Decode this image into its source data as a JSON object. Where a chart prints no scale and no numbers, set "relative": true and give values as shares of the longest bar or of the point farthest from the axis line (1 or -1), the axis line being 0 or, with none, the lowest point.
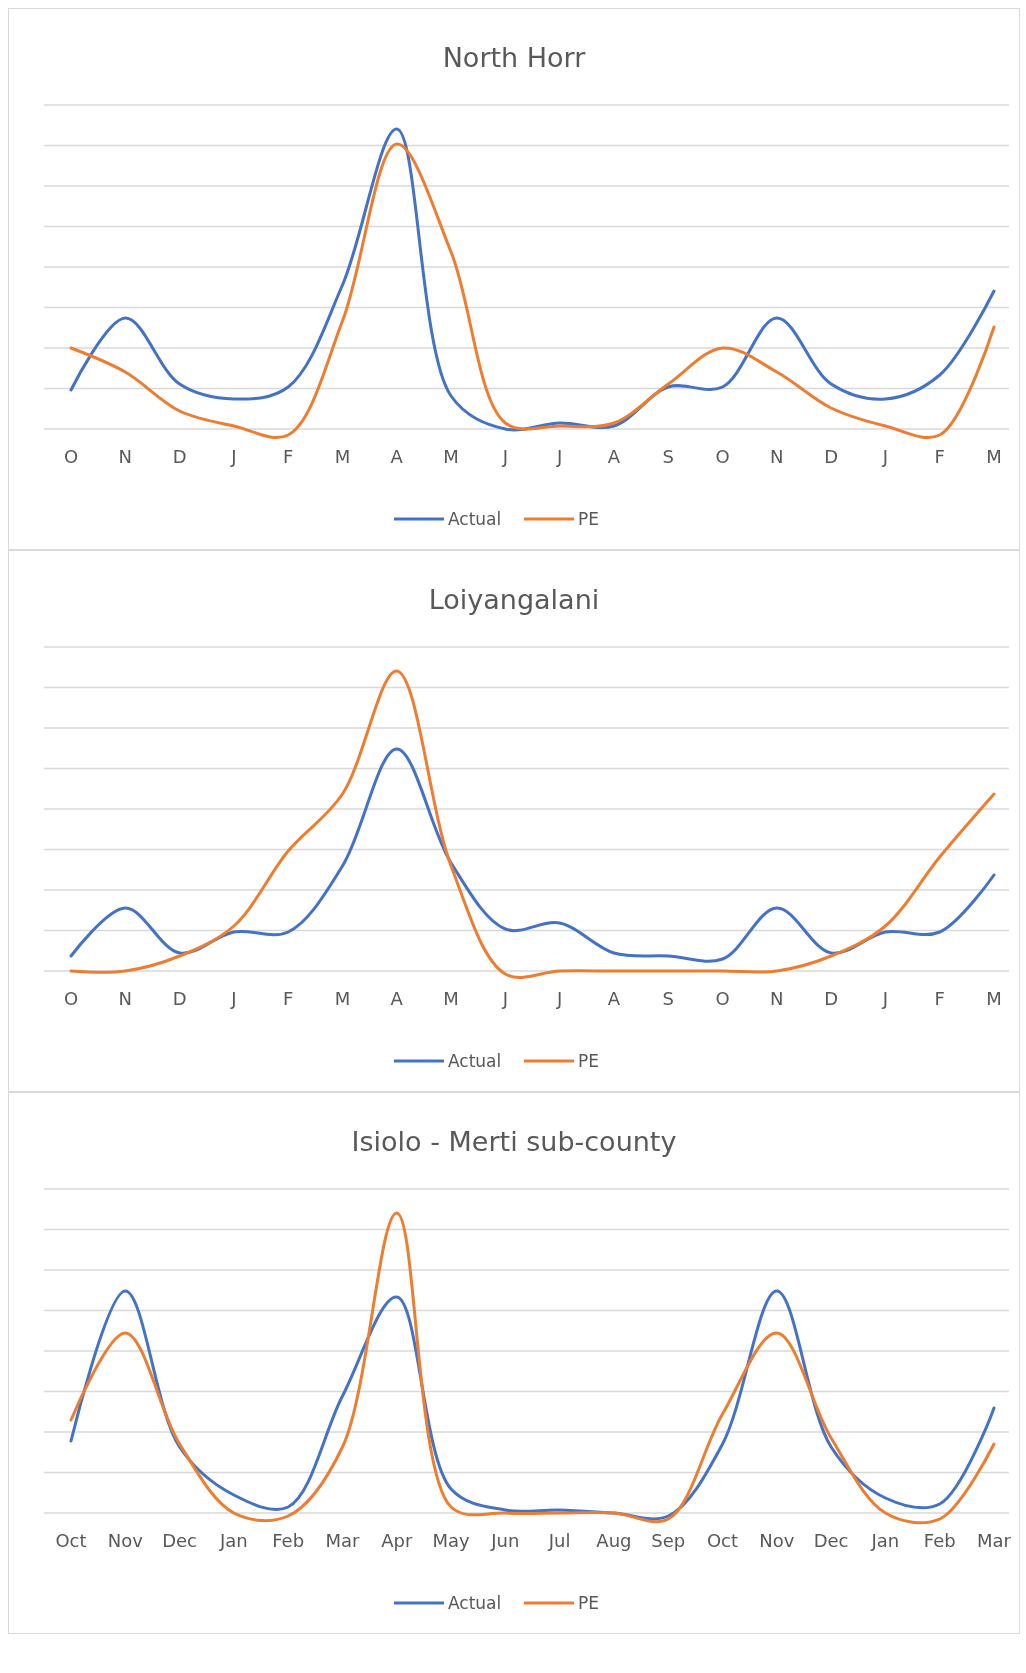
{
  "chart_data": [
    {
      "type": "line",
      "title": "North Horr",
      "relative": true,
      "grid": true,
      "legend": "bottom",
      "categories": [
        "O",
        "N",
        "D",
        "J",
        "F",
        "M",
        "A",
        "M",
        "J",
        "J",
        "A",
        "S",
        "O",
        "N",
        "D",
        "J",
        "F",
        "M"
      ],
      "series": [
        {
          "name": "Actual",
          "color": "#4472c4",
          "values": [
            0.13,
            0.37,
            0.15,
            0.1,
            0.14,
            0.48,
            1,
            0.11,
            0,
            0.02,
            0.01,
            0.14,
            0.14,
            0.37,
            0.15,
            0.1,
            0.18,
            0.46
          ]
        },
        {
          "name": "PE",
          "color": "#ed7d31",
          "values": [
            0.27,
            0.19,
            0.06,
            0.01,
            -0.02,
            0.36,
            0.95,
            0.59,
            0.02,
            0.01,
            0.02,
            0.15,
            0.27,
            0.19,
            0.07,
            0.01,
            -0.02,
            0.34
          ]
        }
      ]
    },
    {
      "type": "line",
      "title": "Loiyangalani",
      "relative": true,
      "grid": true,
      "legend": "bottom",
      "categories": [
        "O",
        "N",
        "D",
        "J",
        "F",
        "M",
        "A",
        "M",
        "J",
        "J",
        "A",
        "S",
        "O",
        "N",
        "D",
        "J",
        "F",
        "M"
      ],
      "series": [
        {
          "name": "Actual",
          "color": "#4472c4",
          "values": [
            0.05,
            0.21,
            0.06,
            0.13,
            0.13,
            0.35,
            0.74,
            0.36,
            0.14,
            0.16,
            0.06,
            0.05,
            0.04,
            0.21,
            0.06,
            0.13,
            0.13,
            0.32
          ]
        },
        {
          "name": "PE",
          "color": "#ed7d31",
          "values": [
            0,
            0,
            0.05,
            0.15,
            0.4,
            0.59,
            1,
            0.35,
            -0.01,
            0,
            0,
            0,
            0,
            0,
            0.05,
            0.15,
            0.38,
            0.59
          ]
        }
      ]
    },
    {
      "type": "line",
      "title": "Isiolo - Merti sub-county",
      "relative": true,
      "grid": true,
      "legend": "bottom",
      "categories": [
        "Oct",
        "Nov",
        "Dec",
        "Jan",
        "Feb",
        "Mar",
        "Apr",
        "May",
        "Jun",
        "Jul",
        "Aug",
        "Sep",
        "Oct",
        "Nov",
        "Dec",
        "Jan",
        "Feb",
        "Mar"
      ],
      "series": [
        {
          "name": "Actual",
          "color": "#4472c4",
          "values": [
            0.24,
            0.74,
            0.22,
            0.06,
            0.02,
            0.39,
            0.72,
            0.08,
            0.01,
            0.01,
            0,
            -0.01,
            0.23,
            0.74,
            0.22,
            0.05,
            0.03,
            0.35
          ]
        },
        {
          "name": "PE",
          "color": "#ed7d31",
          "values": [
            0.31,
            0.6,
            0.23,
            0,
            -0.01,
            0.22,
            1,
            0.02,
            0,
            0,
            0,
            -0.02,
            0.33,
            0.6,
            0.25,
            0,
            -0.02,
            0.23
          ]
        }
      ]
    }
  ]
}
